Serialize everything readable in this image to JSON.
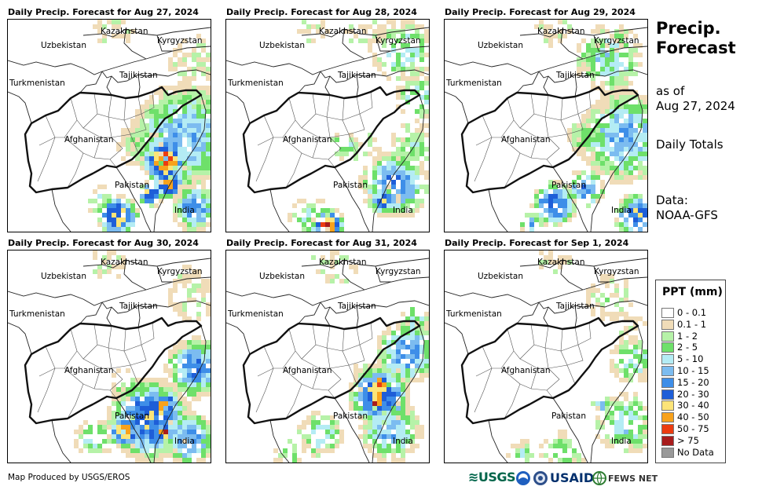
{
  "panels": [
    {
      "title": "Daily Precip. Forecast for Aug 27, 2024"
    },
    {
      "title": "Daily Precip. Forecast for Aug 28, 2024"
    },
    {
      "title": "Daily Precip. Forecast for Aug 29, 2024"
    },
    {
      "title": "Daily Precip. Forecast for Aug 30, 2024"
    },
    {
      "title": "Daily Precip. Forecast for Aug 31, 2024"
    },
    {
      "title": "Daily Precip. Forecast for Sep 1, 2024"
    }
  ],
  "map_labels": {
    "kazakhstan": "Kazakhstan",
    "uzbekistan": "Uzbekistan",
    "kyrgyzstan": "Kyrgyzstan",
    "tajikistan": "Tajikistan",
    "turkmenistan": "Turkmenistan",
    "afghanistan": "Afghanistan",
    "pakistan": "Pakistan",
    "india": "India"
  },
  "side": {
    "title_line1": "Precip.",
    "title_line2": "Forecast",
    "asof_line1": "as of",
    "asof_line2": "Aug 27, 2024",
    "totals": "Daily Totals",
    "data_line1": "Data:",
    "data_line2": "NOAA-GFS"
  },
  "legend": {
    "title": "PPT (mm)",
    "items": [
      {
        "label": "0 - 0.1",
        "color": "#ffffff"
      },
      {
        "label": "0.1 - 1",
        "color": "#f0dcb8"
      },
      {
        "label": "1 - 2",
        "color": "#b6f2a8"
      },
      {
        "label": "2 - 5",
        "color": "#6ee06a"
      },
      {
        "label": "5 - 10",
        "color": "#b4ecf4"
      },
      {
        "label": "10 - 15",
        "color": "#7cbcf0"
      },
      {
        "label": "15 - 20",
        "color": "#3e8ee8"
      },
      {
        "label": "20 - 30",
        "color": "#1e5ed8"
      },
      {
        "label": "30 - 40",
        "color": "#fce478"
      },
      {
        "label": "40 - 50",
        "color": "#f8a21c"
      },
      {
        "label": "50 - 75",
        "color": "#ec3c10"
      },
      {
        "label": "> 75",
        "color": "#a81c1c"
      },
      {
        "label": "No Data",
        "color": "#999999"
      }
    ]
  },
  "footer": {
    "credit": "Map Produced by USGS/EROS"
  },
  "logos": {
    "usgs": "≋USGS",
    "usaid": "USAID",
    "fewsnet": "FEWS NET"
  }
}
